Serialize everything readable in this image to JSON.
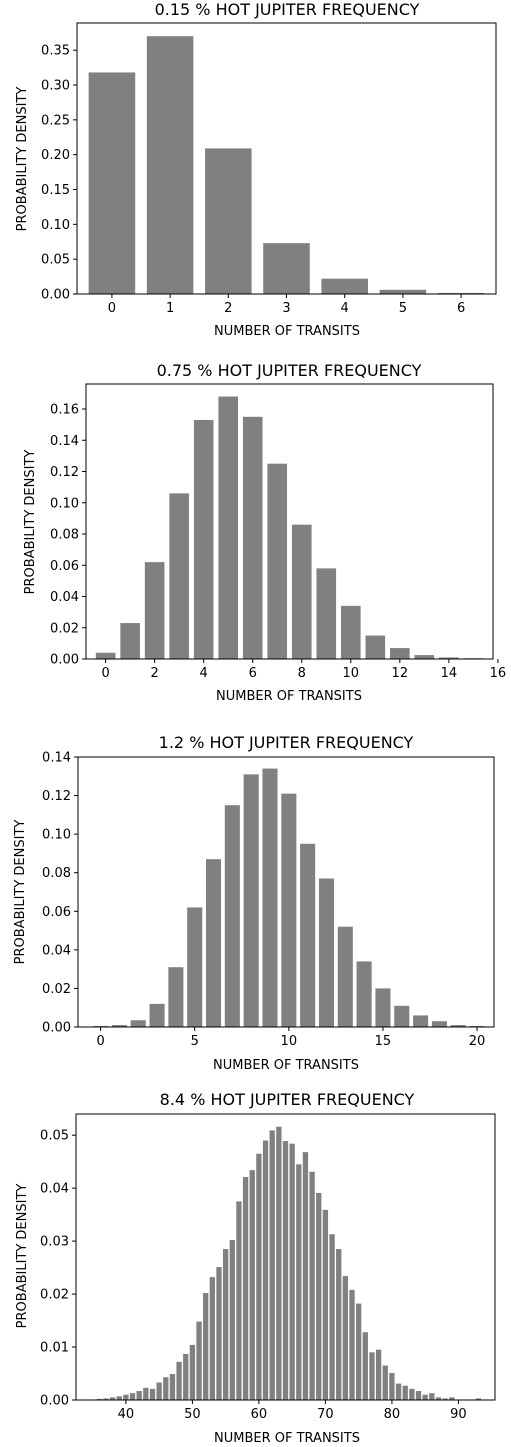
{
  "chart_data": [
    {
      "type": "bar",
      "title": "0.15 % HOT JUPITER FREQUENCY",
      "xlabel": "NUMBER OF TRANSITS",
      "ylabel": "PROBABILITY DENSITY",
      "x": [
        0,
        1,
        2,
        3,
        4,
        5,
        6
      ],
      "values": [
        0.318,
        0.37,
        0.209,
        0.073,
        0.022,
        0.006,
        0.0015
      ],
      "xlim": [
        -0.6,
        6.6
      ],
      "ylim": [
        0,
        0.389
      ],
      "xticks": [
        0,
        1,
        2,
        3,
        4,
        5,
        6
      ],
      "xtick_labels": [
        "0",
        "1",
        "2",
        "3",
        "4",
        "5",
        "6"
      ],
      "yticks": [
        0,
        0.05,
        0.1,
        0.15,
        0.2,
        0.25,
        0.3,
        0.35
      ],
      "ytick_labels": [
        "0.00",
        "0.05",
        "0.10",
        "0.15",
        "0.20",
        "0.25",
        "0.30",
        "0.35"
      ],
      "bar_color": "#808080",
      "grid": false,
      "legend": false
    },
    {
      "type": "bar",
      "title": "0.75 % HOT JUPITER FREQUENCY",
      "xlabel": "NUMBER OF TRANSITS",
      "ylabel": "PROBABILITY DENSITY",
      "x": [
        0,
        1,
        2,
        3,
        4,
        5,
        6,
        7,
        8,
        9,
        10,
        11,
        12,
        13,
        14,
        15
      ],
      "values": [
        0.004,
        0.023,
        0.062,
        0.106,
        0.153,
        0.168,
        0.155,
        0.125,
        0.086,
        0.058,
        0.034,
        0.015,
        0.007,
        0.0025,
        0.001,
        0.0005
      ],
      "xlim": [
        -0.8,
        15.8
      ],
      "ylim": [
        0,
        0.176
      ],
      "xticks": [
        0,
        2,
        4,
        6,
        8,
        10,
        12,
        14,
        16
      ],
      "xtick_labels": [
        "0",
        "2",
        "4",
        "6",
        "8",
        "10",
        "12",
        "14",
        "16"
      ],
      "yticks": [
        0,
        0.02,
        0.04,
        0.06,
        0.08,
        0.1,
        0.12,
        0.14,
        0.16
      ],
      "ytick_labels": [
        "0.00",
        "0.02",
        "0.04",
        "0.06",
        "0.08",
        "0.10",
        "0.12",
        "0.14",
        "0.16"
      ],
      "bar_color": "#808080",
      "grid": false,
      "legend": false
    },
    {
      "type": "bar",
      "title": "1.2 % HOT JUPITER FREQUENCY",
      "xlabel": "NUMBER OF TRANSITS",
      "ylabel": "PROBABILITY DENSITY",
      "x": [
        0,
        1,
        2,
        3,
        4,
        5,
        6,
        7,
        8,
        9,
        10,
        11,
        12,
        13,
        14,
        15,
        16,
        17,
        18,
        19,
        20
      ],
      "values": [
        0.0005,
        0.001,
        0.0035,
        0.012,
        0.031,
        0.062,
        0.087,
        0.115,
        0.131,
        0.134,
        0.121,
        0.095,
        0.077,
        0.052,
        0.034,
        0.02,
        0.011,
        0.006,
        0.003,
        0.001,
        0.0005
      ],
      "xlim": [
        -1.2,
        20.9
      ],
      "ylim": [
        0,
        0.14
      ],
      "xticks": [
        0,
        5,
        10,
        15,
        20
      ],
      "xtick_labels": [
        "0",
        "5",
        "10",
        "15",
        "20"
      ],
      "yticks": [
        0,
        0.02,
        0.04,
        0.06,
        0.08,
        0.1,
        0.12,
        0.14
      ],
      "ytick_labels": [
        "0.00",
        "0.02",
        "0.04",
        "0.06",
        "0.08",
        "0.10",
        "0.12",
        "0.14"
      ],
      "bar_color": "#808080",
      "grid": false,
      "legend": false
    },
    {
      "type": "bar",
      "title": "8.4 % HOT JUPITER FREQUENCY",
      "xlabel": "NUMBER OF TRANSITS",
      "ylabel": "PROBABILITY DENSITY",
      "x": [
        35,
        36,
        37,
        38,
        39,
        40,
        41,
        42,
        43,
        44,
        45,
        46,
        47,
        48,
        49,
        50,
        51,
        52,
        53,
        54,
        55,
        56,
        57,
        58,
        59,
        60,
        61,
        62,
        63,
        64,
        65,
        66,
        67,
        68,
        69,
        70,
        71,
        72,
        73,
        74,
        75,
        76,
        77,
        78,
        79,
        80,
        81,
        82,
        83,
        84,
        85,
        86,
        87,
        88,
        89,
        90,
        91,
        92,
        93
      ],
      "values": [
        0.0001,
        0.0002,
        0.0003,
        0.0005,
        0.0007,
        0.001,
        0.0013,
        0.0017,
        0.0023,
        0.0021,
        0.0033,
        0.0043,
        0.0049,
        0.0072,
        0.0087,
        0.0104,
        0.0148,
        0.0202,
        0.0232,
        0.0251,
        0.0285,
        0.0302,
        0.0375,
        0.0421,
        0.0434,
        0.0465,
        0.049,
        0.0509,
        0.0516,
        0.0489,
        0.0484,
        0.0445,
        0.0468,
        0.0431,
        0.0391,
        0.0359,
        0.0313,
        0.0285,
        0.0234,
        0.0208,
        0.0182,
        0.0128,
        0.009,
        0.0095,
        0.0065,
        0.0051,
        0.0031,
        0.0027,
        0.0021,
        0.0017,
        0.001,
        0.0013,
        0.0005,
        0.0003,
        0.0005,
        0.0001,
        0.0001,
        0.0001,
        0.0003
      ],
      "xlim": [
        32.5,
        95.5
      ],
      "ylim": [
        0,
        0.054
      ],
      "xticks": [
        40,
        50,
        60,
        70,
        80,
        90
      ],
      "xtick_labels": [
        "40",
        "50",
        "60",
        "70",
        "80",
        "90"
      ],
      "yticks": [
        0,
        0.01,
        0.02,
        0.03,
        0.04,
        0.05
      ],
      "ytick_labels": [
        "0.00",
        "0.01",
        "0.02",
        "0.03",
        "0.04",
        "0.05"
      ],
      "bar_color": "#808080",
      "grid": false,
      "legend": false
    }
  ]
}
